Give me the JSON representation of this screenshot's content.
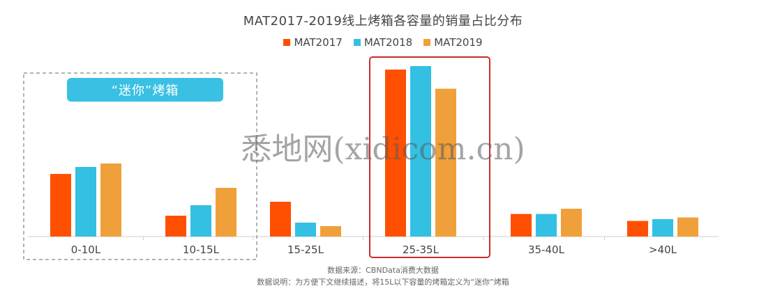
{
  "title": "MAT2017-2019线上烤箱各容量的销量占比分布",
  "legend": [
    "MAT2017",
    "MAT2018",
    "MAT2019"
  ],
  "mini_badge": "“迷你”烤箱",
  "source_line": "数据来源：CBNData消费大数据",
  "note_line": "数据说明：为方便下文继续描述，将15L以下容量的烤箱定义为“迷你”烤箱",
  "watermark": "悉地网(xidicom.cn)",
  "colors": {
    "MAT2017": "#fe5000",
    "MAT2018": "#33c0e2",
    "MAT2019": "#f0a03a",
    "highlight_box": "#cc2a2a",
    "dashed_box": "#999999",
    "baseline": "#cccccc"
  },
  "chart_data": {
    "type": "bar",
    "categories": [
      "0-10L",
      "10-15L",
      "15-25L",
      "25-35L",
      "35-40L",
      ">40L"
    ],
    "series": [
      {
        "name": "MAT2017",
        "values": [
          36,
          12,
          20,
          96,
          13,
          9
        ]
      },
      {
        "name": "MAT2018",
        "values": [
          40,
          18,
          8,
          98,
          13,
          10
        ]
      },
      {
        "name": "MAT2019",
        "values": [
          42,
          28,
          6,
          85,
          16,
          11
        ]
      }
    ],
    "ylim": [
      0,
      100
    ],
    "grid": false,
    "legend_position": "top-center",
    "highlight_category": "25-35L",
    "mini_categories": [
      "0-10L",
      "10-15L"
    ]
  }
}
